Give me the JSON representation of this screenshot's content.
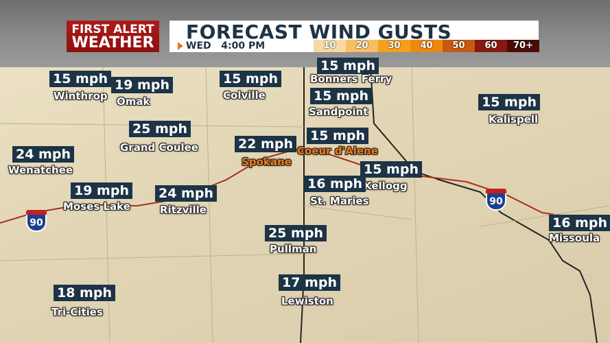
{
  "header": {
    "logo": {
      "line1": "FIRST ALERT",
      "line2": "WEATHER"
    },
    "title": "FORECAST WIND GUSTS",
    "time": "WED   4:00 PM",
    "legend": [
      {
        "label": "10",
        "color": "#f8d9a2"
      },
      {
        "label": "20",
        "color": "#f6bf62"
      },
      {
        "label": "30",
        "color": "#f4a01c"
      },
      {
        "label": "40",
        "color": "#ee8612"
      },
      {
        "label": "50",
        "color": "#c55a12"
      },
      {
        "label": "60",
        "color": "#861a10"
      },
      {
        "label": "70+",
        "color": "#4a0c08"
      }
    ]
  },
  "cities": [
    {
      "name": "Winthrop",
      "gust": "15 mph"
    },
    {
      "name": "Omak",
      "gust": "19 mph"
    },
    {
      "name": "Colville",
      "gust": "15 mph"
    },
    {
      "name": "Bonners Ferry",
      "gust": "15 mph"
    },
    {
      "name": "Sandpoint",
      "gust": "15 mph"
    },
    {
      "name": "Kalispell",
      "gust": "15 mph"
    },
    {
      "name": "Grand Coulee",
      "gust": "25 mph"
    },
    {
      "name": "Spokane",
      "gust": "22 mph",
      "highlight": true
    },
    {
      "name": "Coeur d'Alene",
      "gust": "15 mph",
      "highlight": true
    },
    {
      "name": "Wenatchee",
      "gust": "24 mph"
    },
    {
      "name": "Kellogg",
      "gust": "15 mph"
    },
    {
      "name": "St. Maries",
      "gust": "16 mph"
    },
    {
      "name": "Moses Lake",
      "gust": "19 mph"
    },
    {
      "name": "Ritzville",
      "gust": "24 mph"
    },
    {
      "name": "Missoula",
      "gust": "16 mph"
    },
    {
      "name": "Pullman",
      "gust": "25 mph"
    },
    {
      "name": "Lewiston",
      "gust": "17 mph"
    },
    {
      "name": "Tri-Cities",
      "gust": "18 mph"
    }
  ],
  "interstates": [
    "90",
    "90"
  ]
}
